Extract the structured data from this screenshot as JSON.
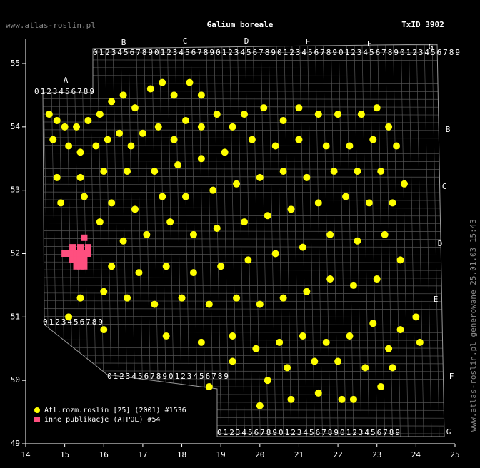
{
  "chart_data": {
    "type": "scatter",
    "title": "Galium boreale",
    "id_label": "TxID 3902",
    "site": "www.atlas-roslin.pl",
    "footer": "www.atlas-roslin.pl generowane 25.01.03 15:43",
    "xlim": [
      14,
      25
    ],
    "xticks": [
      14,
      15,
      16,
      17,
      18,
      19,
      20,
      21,
      22,
      23,
      24,
      25
    ],
    "ylim": [
      49,
      55
    ],
    "yticks": [
      49,
      50,
      51,
      52,
      53,
      54,
      55
    ],
    "grid_letters_top": [
      "A",
      "B",
      "C",
      "D",
      "E",
      "F",
      "G"
    ],
    "grid_letters_right": [
      "B",
      "C",
      "D",
      "E",
      "F",
      "G"
    ],
    "grid_digits": "0123456789",
    "series": [
      {
        "name": "Atl.rozm.roslin [25] (2001) #1536",
        "color": "#ffff00",
        "marker": "circle",
        "x": [
          14.6,
          14.8,
          15.0,
          15.3,
          15.6,
          15.9,
          16.2,
          16.5,
          16.8,
          17.2,
          17.5,
          17.8,
          18.2,
          18.5,
          14.7,
          15.1,
          15.4,
          15.8,
          16.1,
          16.4,
          16.7,
          17.0,
          17.4,
          17.8,
          18.1,
          18.5,
          18.9,
          19.3,
          19.6,
          20.1,
          20.6,
          21.0,
          21.5,
          22.0,
          22.6,
          23.0,
          23.3,
          23.5,
          22.9,
          22.3,
          21.7,
          21.0,
          20.4,
          19.8,
          19.1,
          18.5,
          17.9,
          17.3,
          16.6,
          16.0,
          15.4,
          14.8,
          14.9,
          15.5,
          16.2,
          16.8,
          17.5,
          18.1,
          18.8,
          19.4,
          20.0,
          20.6,
          21.2,
          21.9,
          22.5,
          23.1,
          23.7,
          23.4,
          22.8,
          22.2,
          21.5,
          20.8,
          20.2,
          19.6,
          18.9,
          18.3,
          17.7,
          17.1,
          16.5,
          15.9,
          16.2,
          16.9,
          17.6,
          18.3,
          19.0,
          19.7,
          20.4,
          21.1,
          21.8,
          22.5,
          23.2,
          23.6,
          23.0,
          22.4,
          21.8,
          21.2,
          20.6,
          20.0,
          19.4,
          18.7,
          18.0,
          17.3,
          16.6,
          16.0,
          15.4,
          15.1,
          16.0,
          17.6,
          18.5,
          19.3,
          19.9,
          20.5,
          21.1,
          21.7,
          22.3,
          22.9,
          23.6,
          24.0,
          24.1,
          23.3,
          22.7,
          22.0,
          21.4,
          20.7,
          20.2,
          19.3,
          20.0,
          20.8,
          21.5,
          22.1,
          22.4,
          23.1,
          23.4,
          18.7
        ],
        "values": [
          54.2,
          54.1,
          54.0,
          54.0,
          54.1,
          54.2,
          54.4,
          54.5,
          54.3,
          54.6,
          54.7,
          54.5,
          54.7,
          54.5,
          53.8,
          53.7,
          53.6,
          53.7,
          53.8,
          53.9,
          53.7,
          53.9,
          54.0,
          53.8,
          54.1,
          54.0,
          54.2,
          54.0,
          54.2,
          54.3,
          54.1,
          54.3,
          54.2,
          54.2,
          54.2,
          54.3,
          54.0,
          53.7,
          53.8,
          53.7,
          53.7,
          53.8,
          53.7,
          53.8,
          53.6,
          53.5,
          53.4,
          53.3,
          53.3,
          53.3,
          53.2,
          53.2,
          52.8,
          52.9,
          52.8,
          52.7,
          52.9,
          52.9,
          53.0,
          53.1,
          53.2,
          53.3,
          53.2,
          53.3,
          53.3,
          53.3,
          53.1,
          52.8,
          52.8,
          52.9,
          52.8,
          52.7,
          52.6,
          52.5,
          52.4,
          52.3,
          52.5,
          52.3,
          52.2,
          52.5,
          51.8,
          51.7,
          51.8,
          51.7,
          51.8,
          51.9,
          52.0,
          52.1,
          52.3,
          52.2,
          52.3,
          51.9,
          51.6,
          51.5,
          51.6,
          51.4,
          51.3,
          51.2,
          51.3,
          51.2,
          51.3,
          51.2,
          51.3,
          51.4,
          51.3,
          51.0,
          50.8,
          50.7,
          50.6,
          50.7,
          50.5,
          50.6,
          50.7,
          50.6,
          50.7,
          50.9,
          50.8,
          51.0,
          50.6,
          50.5,
          50.2,
          50.3,
          50.3,
          50.2,
          50.0,
          50.3,
          49.6,
          49.7,
          49.8,
          49.7,
          49.7,
          49.9,
          50.2,
          49.9
        ]
      },
      {
        "name": "inne publikacje (ATPOL) #54",
        "color": "#ff4f7f",
        "marker": "square",
        "x": [
          15.0,
          15.1,
          15.2,
          15.3,
          15.4,
          15.5,
          15.2,
          15.3,
          15.4,
          15.5,
          15.3,
          15.4,
          15.5,
          15.4,
          15.6,
          15.5,
          15.2,
          15.6
        ],
        "values": [
          52.0,
          52.0,
          52.0,
          52.0,
          52.0,
          52.0,
          51.9,
          51.9,
          51.9,
          51.9,
          51.8,
          51.8,
          51.8,
          52.1,
          52.1,
          52.25,
          52.1,
          52.0
        ]
      }
    ]
  }
}
